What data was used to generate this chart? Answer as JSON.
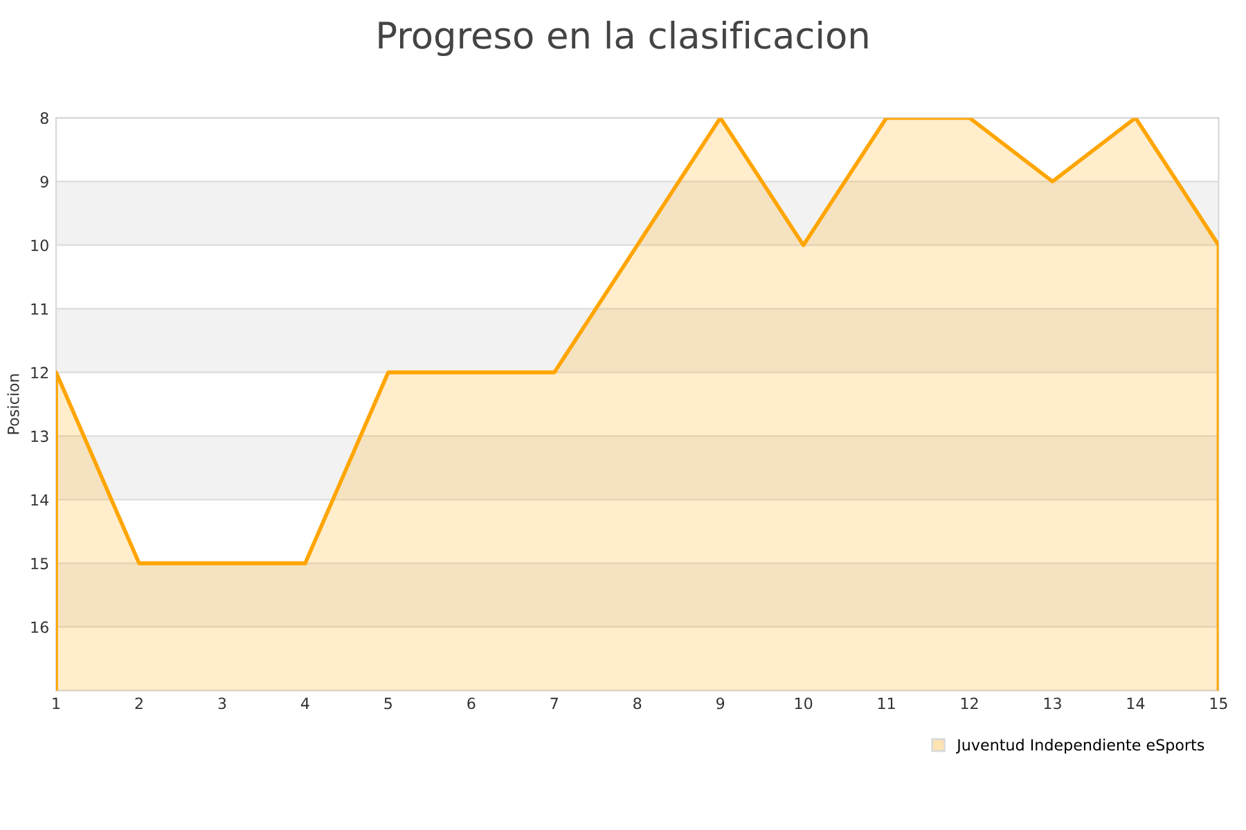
{
  "chart_data": {
    "type": "area",
    "title": "Progreso en la clasificacion",
    "ylabel": "Posicion",
    "x": [
      1,
      2,
      3,
      4,
      5,
      6,
      7,
      8,
      9,
      10,
      11,
      12,
      13,
      14,
      15
    ],
    "series": [
      {
        "name": "Juventud Independiente eSports",
        "color": "#ffa500",
        "values": [
          12,
          15,
          15,
          15,
          12,
          12,
          12,
          10,
          8,
          10,
          8,
          8,
          9,
          8,
          10
        ]
      }
    ],
    "xlim": [
      1,
      15
    ],
    "xticks": [
      1,
      2,
      3,
      4,
      5,
      6,
      7,
      8,
      9,
      10,
      11,
      12,
      13,
      14,
      15
    ],
    "ylim": [
      17,
      8
    ],
    "yticks": [
      8,
      9,
      10,
      11,
      12,
      13,
      14,
      15,
      16
    ],
    "bands": [
      {
        "axis": "y",
        "from": 9,
        "to": 10,
        "color": "#f2f2f2"
      },
      {
        "axis": "y",
        "from": 11,
        "to": 12,
        "color": "#f2f2f2"
      },
      {
        "axis": "y",
        "from": 13,
        "to": 14,
        "color": "#f2f2f2"
      },
      {
        "axis": "y",
        "from": 15,
        "to": 16,
        "color": "#f2f2f2"
      }
    ],
    "grid": "y",
    "legend": "bottom right",
    "marker": "none",
    "line_style": "solid"
  }
}
